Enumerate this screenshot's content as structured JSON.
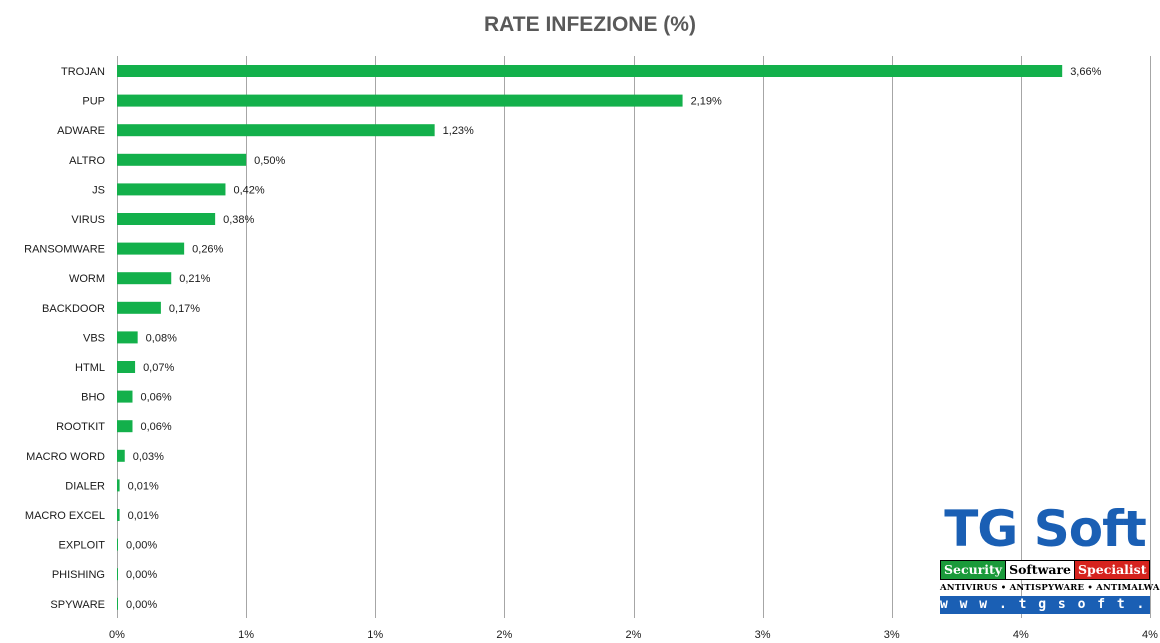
{
  "chart_data": {
    "type": "bar",
    "orientation": "horizontal",
    "title": "RATE INFEZIONE (%)",
    "categories": [
      "TROJAN",
      "PUP",
      "ADWARE",
      "ALTRO",
      "JS",
      "VIRUS",
      "RANSOMWARE",
      "WORM",
      "BACKDOOR",
      "VBS",
      "HTML",
      "BHO",
      "ROOTKIT",
      "MACRO WORD",
      "DIALER",
      "MACRO EXCEL",
      "EXPLOIT",
      "PHISHING",
      "SPYWARE"
    ],
    "values": [
      3.66,
      2.19,
      1.23,
      0.5,
      0.42,
      0.38,
      0.26,
      0.21,
      0.17,
      0.08,
      0.07,
      0.06,
      0.06,
      0.03,
      0.01,
      0.01,
      0.0,
      0.0,
      0.0
    ],
    "value_labels": [
      "3,66%",
      "2,19%",
      "1,23%",
      "0,50%",
      "0,42%",
      "0,38%",
      "0,26%",
      "0,21%",
      "0,17%",
      "0,08%",
      "0,07%",
      "0,06%",
      "0,06%",
      "0,03%",
      "0,01%",
      "0,01%",
      "0,00%",
      "0,00%",
      "0,00%"
    ],
    "xlim": [
      0,
      4
    ],
    "x_ticks": [
      0,
      0.5,
      1,
      1.5,
      2,
      2.5,
      3,
      3.5,
      4
    ],
    "x_tick_labels": [
      "0%",
      "1%",
      "1%",
      "2%",
      "2%",
      "3%",
      "3%",
      "4%",
      "4%"
    ],
    "grid": true,
    "bar_color": "#13b04b",
    "grid_color": "#a6a6a6"
  },
  "logo": {
    "brand": "TG Soft",
    "tagline": [
      "Security",
      "Software",
      "Specialist"
    ],
    "subline": "ANTIVIRUS • ANTISPYWARE • ANTIMALWARE",
    "url": "w w w . t g s o f t . i t",
    "brand_color": "#1a5fb4",
    "green": "#1a9a3a",
    "red": "#d6231e"
  }
}
